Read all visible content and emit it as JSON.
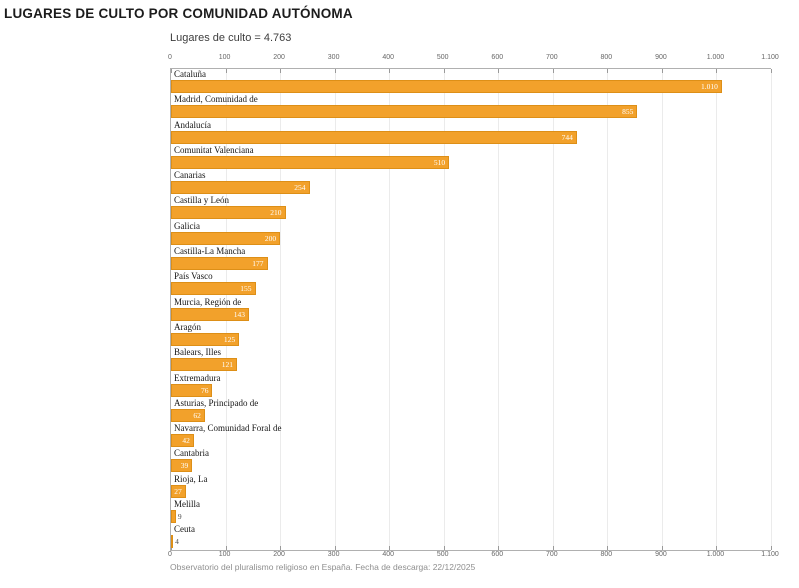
{
  "page": {
    "title": "LUGARES DE CULTO POR COMUNIDAD AUTÓNOMA",
    "footer": "Observatorio del pluralismo religioso en España. Fecha de descarga: 22/12/2025"
  },
  "chart_data": {
    "type": "bar",
    "orientation": "horizontal",
    "title": "LUGARES DE CULTO POR COMUNIDAD AUTÓNOMA",
    "subtitle": "Lugares de culto = 4.763",
    "total_label": "4.763",
    "categories": [
      "Cataluña",
      "Madrid, Comunidad de",
      "Andalucía",
      "Comunitat Valenciana",
      "Canarias",
      "Castilla y León",
      "Galicia",
      "Castilla-La Mancha",
      "País Vasco",
      "Murcia, Región de",
      "Aragón",
      "Balears, Illes",
      "Extremadura",
      "Asturias, Principado de",
      "Navarra, Comunidad Foral de",
      "Cantabria",
      "Rioja, La",
      "Melilla",
      "Ceuta"
    ],
    "values": [
      1010,
      855,
      744,
      510,
      254,
      210,
      200,
      177,
      155,
      143,
      125,
      121,
      76,
      62,
      42,
      39,
      27,
      9,
      4
    ],
    "value_labels": [
      "1.010",
      "855",
      "744",
      "510",
      "254",
      "210",
      "200",
      "177",
      "155",
      "143",
      "125",
      "121",
      "76",
      "62",
      "42",
      "39",
      "27",
      "9",
      "4"
    ],
    "xlim": [
      0,
      1100
    ],
    "x_ticks": [
      0,
      100,
      200,
      300,
      400,
      500,
      600,
      700,
      800,
      900,
      1000,
      1100
    ],
    "x_tick_labels": [
      "0",
      "100",
      "200",
      "300",
      "400",
      "500",
      "600",
      "700",
      "800",
      "900",
      "1.000",
      "1.100"
    ],
    "grid": "vertical",
    "bar_color": "#F2A12B",
    "value_label_color_inside": "#ffffff",
    "value_label_color_outside": "#4a4a4a",
    "outside_label_threshold": 20
  }
}
